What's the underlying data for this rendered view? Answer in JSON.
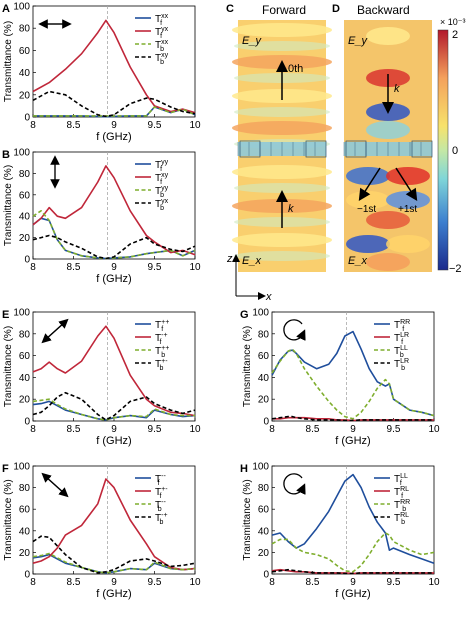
{
  "panels": {
    "A": {
      "letter": "A",
      "legend": [
        "T_f^xx",
        "T_f^yx",
        "T_b^xx",
        "T_b^xy"
      ]
    },
    "B": {
      "letter": "B",
      "legend": [
        "T_f^yy",
        "T_f^xy",
        "T_b^yy",
        "T_b^yx"
      ]
    },
    "E": {
      "letter": "E",
      "legend": [
        "T_f^++",
        "T_f^-+",
        "T_b^++",
        "T_b^+-"
      ]
    },
    "F": {
      "letter": "F",
      "legend": [
        "T_f^--",
        "T_f^+-",
        "T_b^--",
        "T_b^-+"
      ]
    },
    "G": {
      "letter": "G",
      "legend": [
        "T_f^RR",
        "T_f^LR",
        "T_b^LL",
        "T_b^LR"
      ]
    },
    "H": {
      "letter": "H",
      "legend": [
        "T_f^LL",
        "T_f^RL",
        "T_b^RR",
        "T_b^RL"
      ]
    }
  },
  "field_panel": {
    "C": {
      "letter": "C",
      "title": "Forward",
      "top_label": "E_y",
      "bottom_label": "E_x",
      "arrow_up": "0th",
      "arrow_low": "k"
    },
    "D": {
      "letter": "D",
      "title": "Backward",
      "top_label": "E_y",
      "bottom_label": "E_x",
      "arrow_top": "k",
      "left_order": "−1st",
      "right_order": "+1st"
    },
    "colorbar": {
      "max_label": "2",
      "mid_label": "0",
      "min_label": "−2",
      "exponent": "× 10⁻³"
    },
    "axes": {
      "z": "z",
      "x": "x"
    }
  },
  "colors": {
    "blue": "#1f4e9c",
    "red": "#c0273a",
    "green": "#7fae2e",
    "black": "#000000",
    "grid": "#999999"
  },
  "chart_data": [
    {
      "type": "line",
      "panel": "A",
      "ylabel": "Transmittance (%)",
      "xlabel": "f (GHz)",
      "xlim": [
        8,
        10
      ],
      "ylim": [
        0,
        100
      ],
      "xticks": [
        8,
        8.5,
        9,
        9.5,
        10
      ],
      "yticks": [
        0,
        20,
        40,
        60,
        80,
        100
      ],
      "vline": 8.92,
      "x": [
        8.0,
        8.2,
        8.4,
        8.6,
        8.8,
        8.9,
        9.0,
        9.2,
        9.4,
        9.5,
        9.7,
        9.85,
        10.0
      ],
      "series": [
        {
          "name": "T_f^xx",
          "color": "blue",
          "values": [
            1,
            1,
            1,
            1,
            0.5,
            0.3,
            0.5,
            1,
            1,
            9,
            4,
            7,
            2
          ]
        },
        {
          "name": "T_f^yx",
          "color": "red",
          "values": [
            23,
            31,
            43,
            57,
            76,
            87,
            76,
            45,
            20,
            10,
            5,
            7,
            4
          ]
        },
        {
          "name": "T_b^xx",
          "color": "green",
          "values": [
            1,
            1,
            1,
            1,
            1,
            1,
            1,
            1,
            1,
            9,
            4,
            7,
            2
          ]
        },
        {
          "name": "T_b^xy",
          "color": "black",
          "values": [
            15,
            23,
            20,
            10,
            2,
            0.5,
            2,
            12,
            17,
            16,
            9,
            5,
            3
          ]
        }
      ]
    },
    {
      "type": "line",
      "panel": "B",
      "ylabel": "Transmittance (%)",
      "xlabel": "f (GHz)",
      "xlim": [
        8,
        10
      ],
      "ylim": [
        0,
        100
      ],
      "xticks": [
        8,
        8.5,
        9,
        9.5,
        10
      ],
      "yticks": [
        0,
        20,
        40,
        60,
        80,
        100
      ],
      "vline": 8.92,
      "x": [
        8.0,
        8.1,
        8.2,
        8.3,
        8.4,
        8.6,
        8.8,
        8.9,
        9.0,
        9.2,
        9.4,
        9.5,
        9.7,
        9.85,
        10.0
      ],
      "series": [
        {
          "name": "T_f^yy",
          "color": "blue",
          "values": [
            32,
            38,
            36,
            18,
            8,
            3,
            1,
            0.5,
            1,
            2,
            5,
            6,
            8,
            3,
            8
          ]
        },
        {
          "name": "T_f^xy",
          "color": "red",
          "values": [
            32,
            38,
            48,
            40,
            38,
            48,
            72,
            87,
            76,
            45,
            22,
            16,
            6,
            8,
            4
          ]
        },
        {
          "name": "T_b^yy",
          "color": "green",
          "values": [
            40,
            45,
            36,
            18,
            8,
            3,
            1,
            0.5,
            1,
            2,
            5,
            6,
            8,
            3,
            8
          ]
        },
        {
          "name": "T_b^yx",
          "color": "black",
          "values": [
            18,
            20,
            22,
            20,
            16,
            10,
            2,
            0.5,
            2,
            14,
            20,
            14,
            9,
            7,
            12
          ]
        }
      ]
    },
    {
      "type": "line",
      "panel": "E",
      "ylabel": "Transmittance (%)",
      "xlabel": "f (GHz)",
      "xlim": [
        8,
        10
      ],
      "ylim": [
        0,
        100
      ],
      "xticks": [
        8,
        8.5,
        9,
        9.5,
        10
      ],
      "yticks": [
        0,
        20,
        40,
        60,
        80,
        100
      ],
      "vline": 8.92,
      "x": [
        8.0,
        8.1,
        8.2,
        8.3,
        8.4,
        8.6,
        8.8,
        8.9,
        9.0,
        9.2,
        9.4,
        9.5,
        9.7,
        9.85,
        10.0
      ],
      "series": [
        {
          "name": "T_f^++",
          "color": "blue",
          "values": [
            15,
            16,
            18,
            14,
            10,
            6,
            2,
            1,
            3,
            5,
            3,
            10,
            6,
            4,
            5
          ]
        },
        {
          "name": "T_f^-+",
          "color": "red",
          "values": [
            45,
            48,
            54,
            48,
            44,
            55,
            78,
            87,
            76,
            42,
            20,
            14,
            8,
            7,
            5
          ]
        },
        {
          "name": "T_b^++",
          "color": "green",
          "values": [
            18,
            19,
            20,
            15,
            11,
            6,
            2,
            1,
            3,
            5,
            4,
            11,
            6,
            5,
            5
          ]
        },
        {
          "name": "T_b^+-",
          "color": "black",
          "values": [
            6,
            8,
            14,
            22,
            26,
            20,
            6,
            1,
            5,
            18,
            22,
            16,
            10,
            7,
            10
          ]
        }
      ]
    },
    {
      "type": "line",
      "panel": "F",
      "ylabel": "Transmittance (%)",
      "xlabel": "f (GHz)",
      "xlim": [
        8,
        10
      ],
      "ylim": [
        0,
        100
      ],
      "xticks": [
        8,
        8.5,
        9,
        9.5,
        10
      ],
      "yticks": [
        0,
        20,
        40,
        60,
        80,
        100
      ],
      "vline": 8.92,
      "x": [
        8.0,
        8.1,
        8.2,
        8.3,
        8.4,
        8.6,
        8.8,
        8.9,
        9.0,
        9.2,
        9.4,
        9.5,
        9.7,
        9.85,
        10.0
      ],
      "series": [
        {
          "name": "T_f^--",
          "color": "blue",
          "values": [
            15,
            16,
            18,
            14,
            10,
            6,
            2,
            1,
            2,
            5,
            4,
            10,
            5,
            4,
            5
          ]
        },
        {
          "name": "T_f^+-",
          "color": "red",
          "values": [
            10,
            12,
            16,
            24,
            36,
            45,
            65,
            88,
            80,
            50,
            28,
            16,
            6,
            4,
            5
          ]
        },
        {
          "name": "T_b^--",
          "color": "green",
          "values": [
            16,
            17,
            19,
            15,
            11,
            6,
            2,
            1,
            2,
            5,
            4,
            11,
            5,
            4,
            5
          ]
        },
        {
          "name": "T_b^-+",
          "color": "black",
          "values": [
            30,
            35,
            34,
            26,
            18,
            6,
            1,
            2,
            4,
            12,
            14,
            12,
            7,
            8,
            10
          ]
        }
      ]
    },
    {
      "type": "line",
      "panel": "G",
      "ylabel": "Transmittance (%)",
      "xlabel": "f (GHz)",
      "xlim": [
        8,
        10
      ],
      "ylim": [
        0,
        100
      ],
      "xticks": [
        8,
        8.5,
        9,
        9.5,
        10
      ],
      "yticks": [
        0,
        20,
        40,
        60,
        80,
        100
      ],
      "vline": 8.92,
      "x": [
        8.0,
        8.1,
        8.2,
        8.25,
        8.3,
        8.4,
        8.55,
        8.7,
        8.8,
        8.9,
        9.0,
        9.1,
        9.2,
        9.3,
        9.4,
        9.45,
        9.5,
        9.7,
        9.85,
        10.0
      ],
      "series": [
        {
          "name": "T_f^RR",
          "color": "blue",
          "values": [
            42,
            56,
            64,
            65,
            62,
            54,
            48,
            52,
            62,
            78,
            82,
            66,
            48,
            36,
            32,
            34,
            20,
            10,
            8,
            5
          ]
        },
        {
          "name": "T_f^LR",
          "color": "red",
          "values": [
            2,
            2,
            3,
            3,
            3,
            3,
            2,
            2,
            1,
            1,
            0.5,
            1,
            1,
            1,
            1,
            1,
            1,
            1,
            1,
            1
          ]
        },
        {
          "name": "T_b^LL",
          "color": "green",
          "values": [
            44,
            55,
            64,
            66,
            62,
            48,
            32,
            18,
            10,
            4,
            2,
            8,
            18,
            30,
            38,
            34,
            20,
            10,
            8,
            5
          ]
        },
        {
          "name": "T_b^LR",
          "color": "black",
          "values": [
            2,
            3,
            4,
            4,
            3,
            2,
            1,
            1,
            1,
            0.5,
            0.5,
            1,
            1,
            1,
            1,
            1,
            1,
            1,
            1,
            1
          ]
        }
      ]
    },
    {
      "type": "line",
      "panel": "H",
      "ylabel": "Transmittance (%)",
      "xlabel": "f (GHz)",
      "xlim": [
        8,
        10
      ],
      "ylim": [
        0,
        100
      ],
      "xticks": [
        8,
        8.5,
        9,
        9.5,
        10
      ],
      "yticks": [
        0,
        20,
        40,
        60,
        80,
        100
      ],
      "vline": 8.92,
      "x": [
        8.0,
        8.1,
        8.2,
        8.3,
        8.4,
        8.55,
        8.7,
        8.8,
        8.9,
        9.0,
        9.1,
        9.2,
        9.3,
        9.4,
        9.45,
        9.5,
        9.7,
        9.85,
        10.0
      ],
      "series": [
        {
          "name": "T_f^LL",
          "color": "blue",
          "values": [
            36,
            38,
            30,
            24,
            28,
            42,
            58,
            72,
            86,
            92,
            80,
            62,
            48,
            38,
            22,
            24,
            18,
            14,
            10
          ]
        },
        {
          "name": "T_f^RL",
          "color": "red",
          "values": [
            3,
            4,
            3,
            2,
            2,
            1,
            1,
            1,
            1,
            0.5,
            1,
            1,
            1,
            1,
            1,
            1,
            1,
            1,
            1
          ]
        },
        {
          "name": "T_b^RR",
          "color": "green",
          "values": [
            28,
            32,
            32,
            24,
            20,
            18,
            14,
            8,
            3,
            2,
            8,
            18,
            30,
            38,
            36,
            30,
            22,
            18,
            20
          ]
        },
        {
          "name": "T_b^RL",
          "color": "black",
          "values": [
            2,
            3,
            4,
            3,
            2,
            1,
            1,
            1,
            0.5,
            0.5,
            1,
            1,
            1,
            1,
            1,
            1,
            1,
            1,
            1
          ]
        }
      ]
    }
  ]
}
